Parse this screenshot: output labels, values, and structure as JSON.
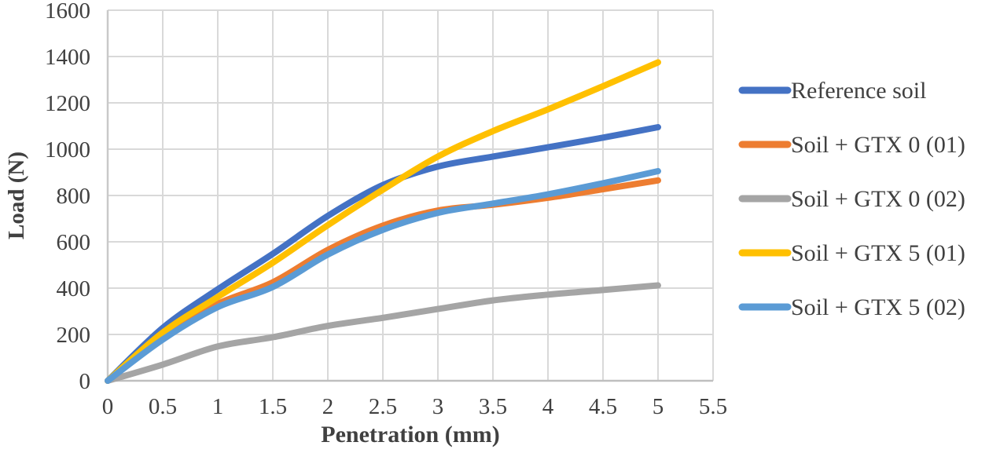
{
  "chart_data": {
    "type": "line",
    "title": "",
    "xlabel": "Penetration (mm)",
    "ylabel": "Load (N)",
    "x": [
      0,
      0.5,
      1,
      1.5,
      2,
      2.5,
      3,
      3.5,
      4,
      4.5,
      5
    ],
    "series": [
      {
        "name": "Reference soil",
        "color": "#4472C4",
        "values": [
          0,
          228,
          395,
          548,
          712,
          845,
          925,
          968,
          1008,
          1050,
          1095
        ]
      },
      {
        "name": "Soil + GTX 0 (01)",
        "color": "#ED7D31",
        "values": [
          0,
          190,
          332,
          425,
          565,
          670,
          735,
          760,
          790,
          827,
          865
        ]
      },
      {
        "name": "Soil + GTX 0 (02)",
        "color": "#A5A5A5",
        "values": [
          0,
          70,
          148,
          188,
          237,
          272,
          310,
          347,
          372,
          392,
          412
        ]
      },
      {
        "name": "Soil + GTX 5 (01)",
        "color": "#FFC000",
        "values": [
          0,
          208,
          362,
          510,
          672,
          825,
          968,
          1078,
          1172,
          1272,
          1375
        ]
      },
      {
        "name": "Soil + GTX 5 (02)",
        "color": "#5B9BD5",
        "values": [
          0,
          178,
          318,
          405,
          545,
          652,
          725,
          765,
          805,
          853,
          905
        ]
      }
    ],
    "xlim": [
      0,
      5.5
    ],
    "ylim": [
      0,
      1600
    ],
    "xtick_labels": [
      "0",
      "0.5",
      "1",
      "1.5",
      "2",
      "2.5",
      "3",
      "3.5",
      "4",
      "4.5",
      "5",
      "5.5"
    ],
    "yticks": [
      0,
      200,
      400,
      600,
      800,
      1000,
      1200,
      1400,
      1600
    ],
    "grid": true,
    "legend_position": "right",
    "grid_color": "#D9D9D9",
    "axis_color": "#BFBFBF",
    "text_color": "#404040"
  }
}
